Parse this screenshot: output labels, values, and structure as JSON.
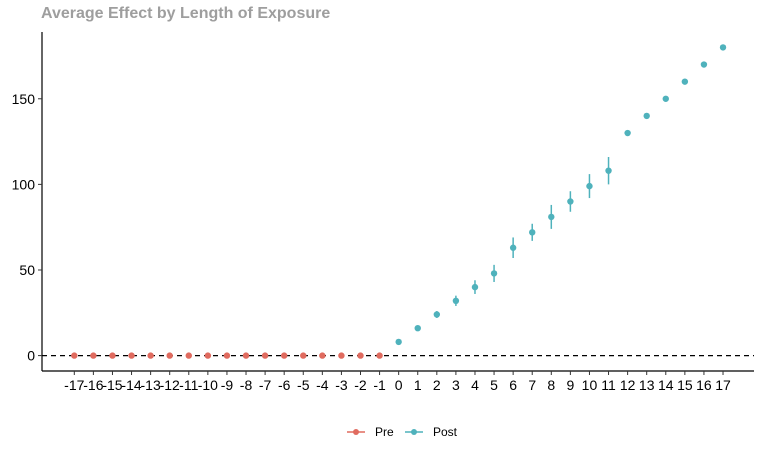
{
  "chart_data": {
    "type": "scatter",
    "title": "Average Effect by Length of Exposure",
    "xlabel": "",
    "ylabel": "",
    "x": [
      -17,
      -16,
      -15,
      -14,
      -13,
      -12,
      -11,
      -10,
      -9,
      -8,
      -7,
      -6,
      -5,
      -4,
      -3,
      -2,
      -1,
      0,
      1,
      2,
      3,
      4,
      5,
      6,
      7,
      8,
      9,
      10,
      11,
      12,
      13,
      14,
      15,
      16,
      17
    ],
    "ylim": [
      -9,
      189
    ],
    "yticks": [
      0,
      50,
      100,
      150
    ],
    "reference_line": 0,
    "grid": false,
    "legend_position": "bottom",
    "series": [
      {
        "name": "Pre",
        "color": "#e06b5f",
        "points": [
          {
            "x": -17,
            "y": 0,
            "lo": 0,
            "hi": 0
          },
          {
            "x": -16,
            "y": 0,
            "lo": 0,
            "hi": 0
          },
          {
            "x": -15,
            "y": 0,
            "lo": 0,
            "hi": 0
          },
          {
            "x": -14,
            "y": 0,
            "lo": 0,
            "hi": 0
          },
          {
            "x": -13,
            "y": 0,
            "lo": 0,
            "hi": 0
          },
          {
            "x": -12,
            "y": 0,
            "lo": 0,
            "hi": 0
          },
          {
            "x": -11,
            "y": 0,
            "lo": 0,
            "hi": 0
          },
          {
            "x": -10,
            "y": 0,
            "lo": 0,
            "hi": 0
          },
          {
            "x": -9,
            "y": 0,
            "lo": 0,
            "hi": 0
          },
          {
            "x": -8,
            "y": 0,
            "lo": 0,
            "hi": 0
          },
          {
            "x": -7,
            "y": 0,
            "lo": 0,
            "hi": 0
          },
          {
            "x": -6,
            "y": 0,
            "lo": 0,
            "hi": 0
          },
          {
            "x": -5,
            "y": 0,
            "lo": 0,
            "hi": 0
          },
          {
            "x": -4,
            "y": 0,
            "lo": 0,
            "hi": 0
          },
          {
            "x": -3,
            "y": 0,
            "lo": 0,
            "hi": 0
          },
          {
            "x": -2,
            "y": 0,
            "lo": 0,
            "hi": 0
          },
          {
            "x": -1,
            "y": 0,
            "lo": 0,
            "hi": 0
          }
        ]
      },
      {
        "name": "Post",
        "color": "#4fb2bc",
        "points": [
          {
            "x": 0,
            "y": 8,
            "lo": 8,
            "hi": 8
          },
          {
            "x": 1,
            "y": 16,
            "lo": 14.5,
            "hi": 17.5
          },
          {
            "x": 2,
            "y": 24,
            "lo": 22,
            "hi": 26
          },
          {
            "x": 3,
            "y": 32,
            "lo": 29,
            "hi": 35
          },
          {
            "x": 4,
            "y": 40,
            "lo": 36,
            "hi": 44
          },
          {
            "x": 5,
            "y": 48,
            "lo": 43,
            "hi": 53
          },
          {
            "x": 6,
            "y": 63,
            "lo": 57,
            "hi": 69
          },
          {
            "x": 7,
            "y": 72,
            "lo": 67,
            "hi": 77
          },
          {
            "x": 8,
            "y": 81,
            "lo": 74,
            "hi": 88
          },
          {
            "x": 9,
            "y": 90,
            "lo": 84,
            "hi": 96
          },
          {
            "x": 10,
            "y": 99,
            "lo": 92,
            "hi": 106
          },
          {
            "x": 11,
            "y": 108,
            "lo": 100,
            "hi": 116
          },
          {
            "x": 12,
            "y": 130,
            "lo": 130,
            "hi": 130
          },
          {
            "x": 13,
            "y": 140,
            "lo": 140,
            "hi": 140
          },
          {
            "x": 14,
            "y": 150,
            "lo": 150,
            "hi": 150
          },
          {
            "x": 15,
            "y": 160,
            "lo": 160,
            "hi": 160
          },
          {
            "x": 16,
            "y": 170,
            "lo": 170,
            "hi": 170
          },
          {
            "x": 17,
            "y": 180,
            "lo": 180,
            "hi": 180
          }
        ]
      }
    ]
  }
}
